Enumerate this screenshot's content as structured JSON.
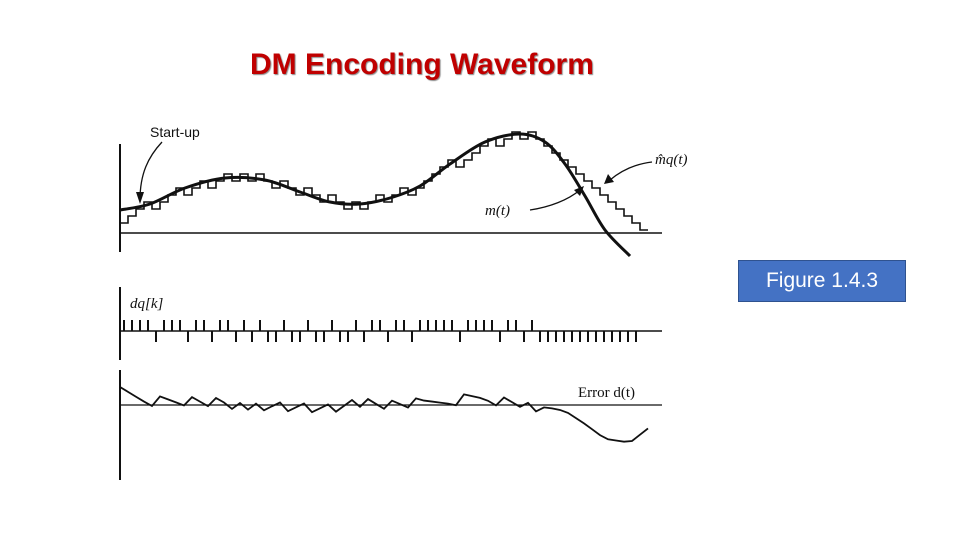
{
  "title": "DM Encoding Waveform",
  "figure_label": "Figure 1.4.3",
  "diagram": {
    "startup_label": "Start-up",
    "mq_label": "m̂q(t)",
    "m_label": "m(t)",
    "dq_label": "dq[k]",
    "error_label": "Error d(t)"
  },
  "colors": {
    "title": "#c00000",
    "figure_label_bg": "#4472c4",
    "ink": "#111111"
  }
}
